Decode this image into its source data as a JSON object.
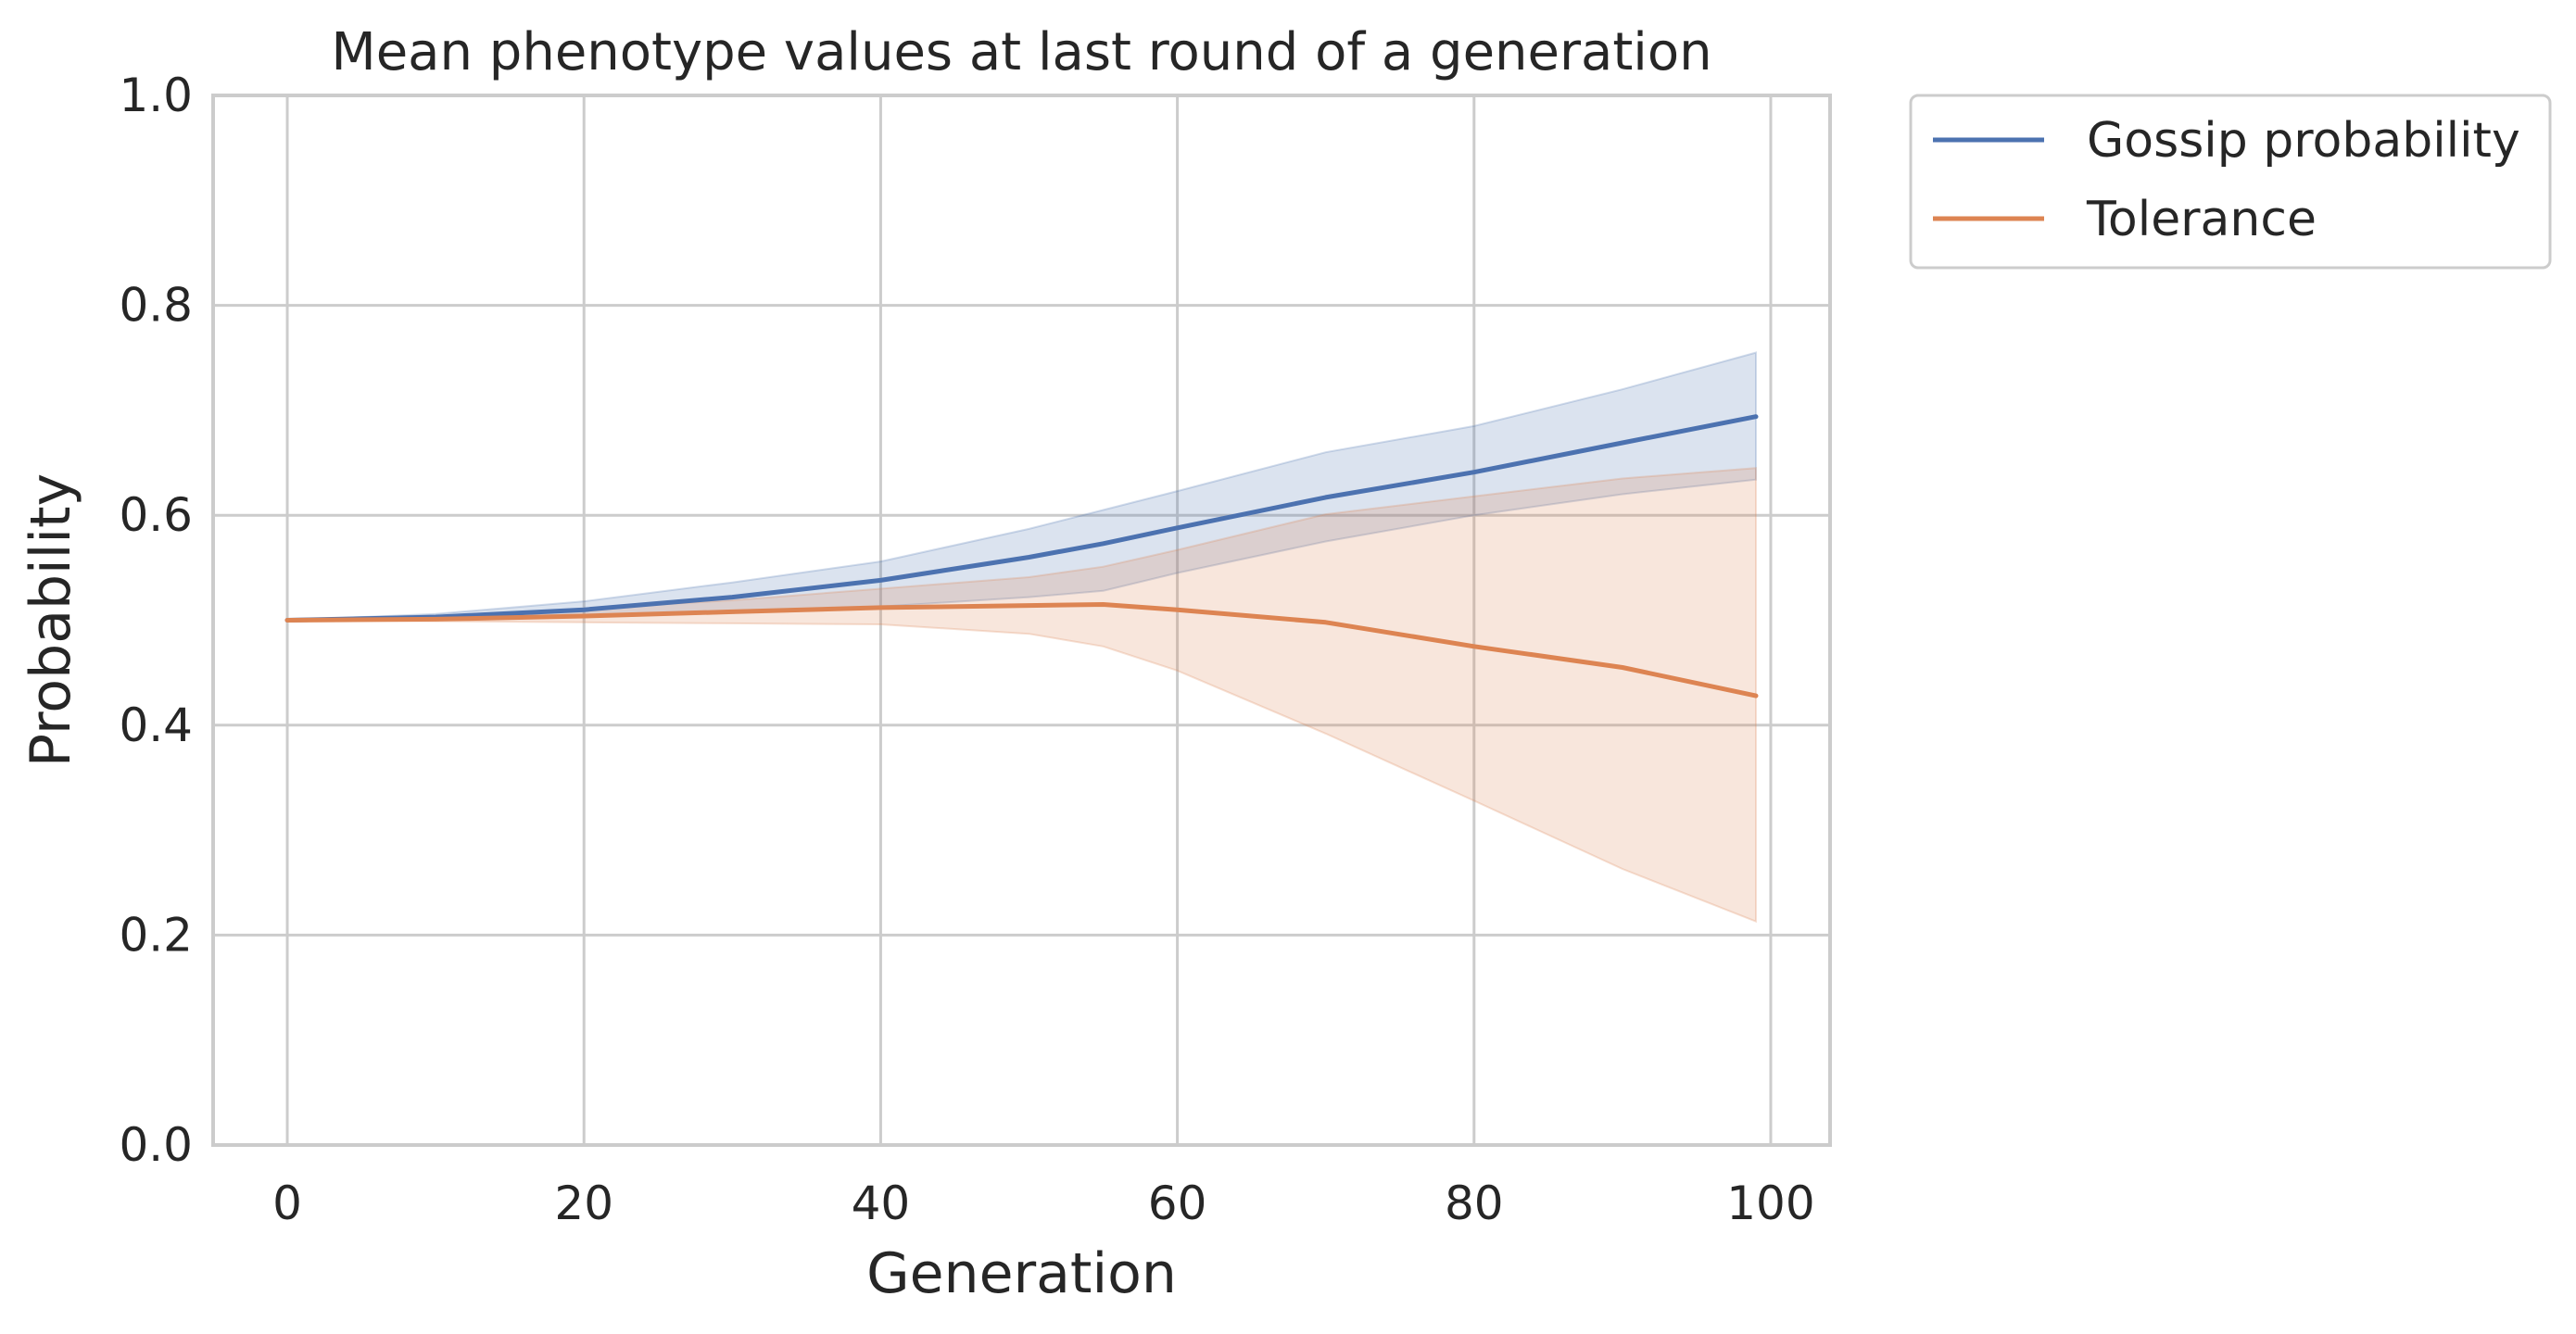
{
  "chart_data": {
    "type": "line",
    "title": "Mean phenotype values at last round of a generation",
    "xlabel": "Generation",
    "ylabel": "Probability",
    "xlim": [
      -5,
      104
    ],
    "ylim": [
      0.0,
      1.0
    ],
    "xticks": [
      0,
      20,
      40,
      60,
      80,
      100
    ],
    "xtick_labels": [
      "0",
      "20",
      "40",
      "60",
      "80",
      "100"
    ],
    "yticks": [
      0.0,
      0.2,
      0.4,
      0.6,
      0.8,
      1.0
    ],
    "ytick_labels": [
      "0.0",
      "0.2",
      "0.4",
      "0.6",
      "0.8",
      "1.0"
    ],
    "grid": true,
    "legend_position": "outside-top-right",
    "x": [
      0,
      10,
      20,
      30,
      40,
      50,
      55,
      60,
      70,
      80,
      90,
      99
    ],
    "series": [
      {
        "name": "Gossip probability",
        "color": "#4c72b0",
        "values": [
          0.5,
          0.503,
          0.51,
          0.522,
          0.538,
          0.56,
          0.573,
          0.588,
          0.617,
          0.641,
          0.669,
          0.694
        ],
        "band_lower": [
          0.5,
          0.5,
          0.503,
          0.507,
          0.513,
          0.522,
          0.528,
          0.545,
          0.575,
          0.6,
          0.62,
          0.634
        ],
        "band_upper": [
          0.5,
          0.506,
          0.518,
          0.536,
          0.556,
          0.587,
          0.605,
          0.623,
          0.66,
          0.685,
          0.72,
          0.755
        ]
      },
      {
        "name": "Tolerance",
        "color": "#dd8452",
        "values": [
          0.5,
          0.501,
          0.504,
          0.508,
          0.512,
          0.514,
          0.515,
          0.51,
          0.498,
          0.475,
          0.455,
          0.428
        ],
        "band_lower": [
          0.5,
          0.499,
          0.498,
          0.497,
          0.496,
          0.487,
          0.475,
          0.452,
          0.392,
          0.328,
          0.263,
          0.213
        ],
        "band_upper": [
          0.5,
          0.504,
          0.511,
          0.519,
          0.53,
          0.541,
          0.551,
          0.567,
          0.601,
          0.618,
          0.635,
          0.645
        ]
      }
    ]
  }
}
